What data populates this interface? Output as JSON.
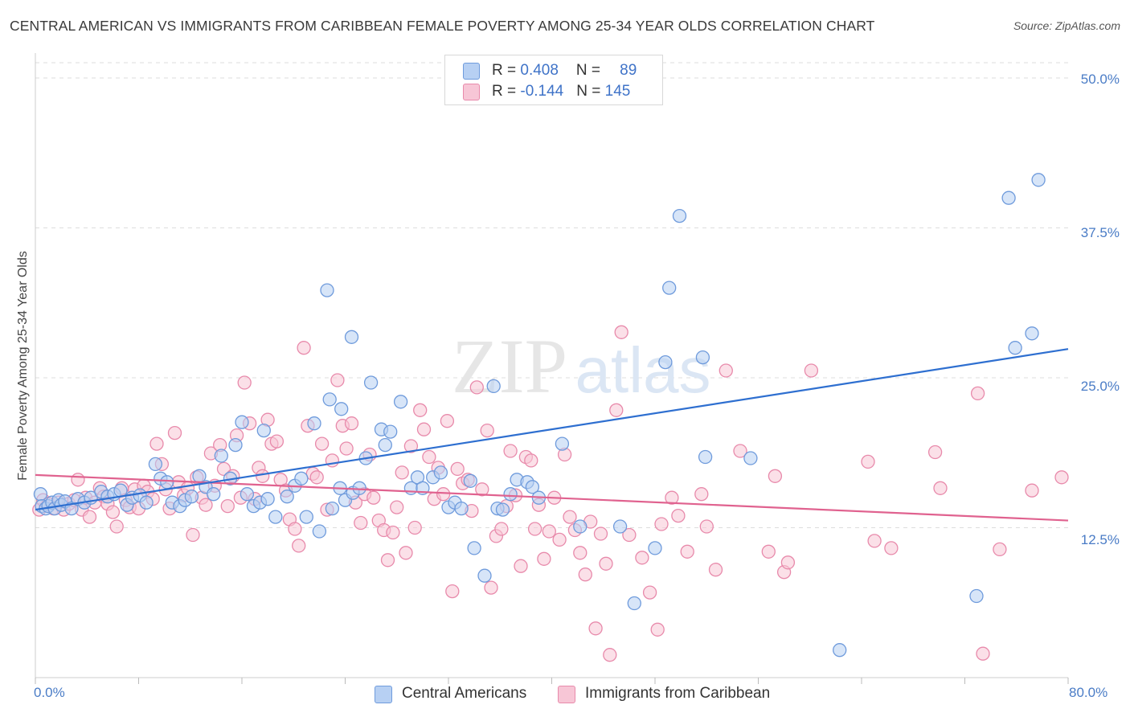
{
  "header": {
    "title": "CENTRAL AMERICAN VS IMMIGRANTS FROM CARIBBEAN FEMALE POVERTY AMONG 25-34 YEAR OLDS CORRELATION CHART",
    "source": "Source: ZipAtlas.com"
  },
  "watermark": {
    "part1": "ZIP",
    "part2": "atlas"
  },
  "legend": {
    "blue": {
      "r_label": "R = ",
      "r_value": "0.408",
      "n_label": "N = ",
      "n_value": "89"
    },
    "pink": {
      "r_label": "R = ",
      "r_value": "-0.144",
      "n_label": "N = ",
      "n_value": "145"
    }
  },
  "colors": {
    "blue_fill": "#b7d0f3",
    "blue_stroke": "#6f9bdc",
    "blue_line": "#2e6fd0",
    "pink_fill": "#f7c6d6",
    "pink_stroke": "#e88aab",
    "pink_line": "#e0628f",
    "tick_text": "#4a7cc6",
    "grid": "#dddddd"
  },
  "chart_data": {
    "type": "scatter",
    "title": "CENTRAL AMERICAN VS IMMIGRANTS FROM CARIBBEAN FEMALE POVERTY AMONG 25-34 YEAR OLDS CORRELATION CHART",
    "xlabel": "",
    "ylabel": "Female Poverty Among 25-34 Year Olds",
    "xlim": [
      0,
      80
    ],
    "ylim": [
      0,
      50
    ],
    "x_tick_labels": [
      "0.0%",
      "80.0%"
    ],
    "y_ticks": [
      12.5,
      25.0,
      37.5,
      50.0
    ],
    "y_tick_labels": [
      "12.5%",
      "25.0%",
      "37.5%",
      "50.0%"
    ],
    "grid": true,
    "legend_position": "bottom",
    "series": [
      {
        "name": "Central Americans",
        "r": 0.408,
        "n": 89,
        "trend": {
          "x": [
            0,
            80
          ],
          "y": [
            14.0,
            27.4
          ]
        },
        "points": [
          [
            0.4,
            15.3
          ],
          [
            0.5,
            14.3
          ],
          [
            0.8,
            14.1
          ],
          [
            1.0,
            14.3
          ],
          [
            1.3,
            14.6
          ],
          [
            1.5,
            14.1
          ],
          [
            1.8,
            14.8
          ],
          [
            2.0,
            14.4
          ],
          [
            2.3,
            14.7
          ],
          [
            2.8,
            14.1
          ],
          [
            3.3,
            14.9
          ],
          [
            3.8,
            14.6
          ],
          [
            4.3,
            15.0
          ],
          [
            5.1,
            15.5
          ],
          [
            5.6,
            15.1
          ],
          [
            6.1,
            15.3
          ],
          [
            6.6,
            15.6
          ],
          [
            7.1,
            14.4
          ],
          [
            7.5,
            15.0
          ],
          [
            8.1,
            15.2
          ],
          [
            8.6,
            14.6
          ],
          [
            9.3,
            17.8
          ],
          [
            9.7,
            16.6
          ],
          [
            10.2,
            16.3
          ],
          [
            10.6,
            14.6
          ],
          [
            11.2,
            14.3
          ],
          [
            11.6,
            14.8
          ],
          [
            12.1,
            15.1
          ],
          [
            12.7,
            16.8
          ],
          [
            13.2,
            15.9
          ],
          [
            13.8,
            15.3
          ],
          [
            14.4,
            18.5
          ],
          [
            15.1,
            16.6
          ],
          [
            15.5,
            19.4
          ],
          [
            16.0,
            21.3
          ],
          [
            16.4,
            15.3
          ],
          [
            16.9,
            14.3
          ],
          [
            17.4,
            14.6
          ],
          [
            18.0,
            14.9
          ],
          [
            17.7,
            20.6
          ],
          [
            18.6,
            13.4
          ],
          [
            19.5,
            15.1
          ],
          [
            20.1,
            16.0
          ],
          [
            20.6,
            16.6
          ],
          [
            21.0,
            13.4
          ],
          [
            21.6,
            21.2
          ],
          [
            22.0,
            12.2
          ],
          [
            23.0,
            14.1
          ],
          [
            23.6,
            15.8
          ],
          [
            24.0,
            14.8
          ],
          [
            24.6,
            15.4
          ],
          [
            22.6,
            32.3
          ],
          [
            22.8,
            23.2
          ],
          [
            23.7,
            22.4
          ],
          [
            24.5,
            28.4
          ],
          [
            25.1,
            15.8
          ],
          [
            25.6,
            18.3
          ],
          [
            26.0,
            24.6
          ],
          [
            26.8,
            20.7
          ],
          [
            27.1,
            19.4
          ],
          [
            27.5,
            20.5
          ],
          [
            28.3,
            23.0
          ],
          [
            29.1,
            15.8
          ],
          [
            29.6,
            16.7
          ],
          [
            30.0,
            15.8
          ],
          [
            30.8,
            16.7
          ],
          [
            31.4,
            17.1
          ],
          [
            32.0,
            14.2
          ],
          [
            32.5,
            14.6
          ],
          [
            33.0,
            14.1
          ],
          [
            33.7,
            16.4
          ],
          [
            34.0,
            10.8
          ],
          [
            34.8,
            8.5
          ],
          [
            35.5,
            24.3
          ],
          [
            35.8,
            14.1
          ],
          [
            36.2,
            14.0
          ],
          [
            36.8,
            15.3
          ],
          [
            37.3,
            16.5
          ],
          [
            38.1,
            16.3
          ],
          [
            38.5,
            15.9
          ],
          [
            39.0,
            15.0
          ],
          [
            40.8,
            19.5
          ],
          [
            42.2,
            12.6
          ],
          [
            45.3,
            12.6
          ],
          [
            46.4,
            6.2
          ],
          [
            48.0,
            10.8
          ],
          [
            49.1,
            32.5
          ],
          [
            49.9,
            38.5
          ],
          [
            48.8,
            26.3
          ],
          [
            51.7,
            26.7
          ],
          [
            51.9,
            18.4
          ],
          [
            55.4,
            18.3
          ],
          [
            62.3,
            2.3
          ],
          [
            72.9,
            6.8
          ],
          [
            75.4,
            40.0
          ],
          [
            75.9,
            27.5
          ],
          [
            77.2,
            28.7
          ],
          [
            77.7,
            41.5
          ]
        ]
      },
      {
        "name": "Immigrants from Caribbean",
        "r": -0.144,
        "n": 145,
        "trend": {
          "x": [
            0,
            80
          ],
          "y": [
            16.9,
            13.1
          ]
        },
        "points": [
          [
            0.3,
            14.0
          ],
          [
            0.6,
            14.8
          ],
          [
            1.0,
            14.5
          ],
          [
            1.4,
            14.1
          ],
          [
            1.8,
            14.6
          ],
          [
            2.2,
            14.0
          ],
          [
            2.6,
            14.5
          ],
          [
            3.0,
            14.8
          ],
          [
            3.3,
            16.5
          ],
          [
            3.6,
            14.0
          ],
          [
            3.9,
            15.0
          ],
          [
            4.2,
            13.4
          ],
          [
            4.6,
            14.6
          ],
          [
            5.0,
            15.8
          ],
          [
            5.3,
            15.1
          ],
          [
            5.6,
            14.5
          ],
          [
            6.0,
            13.8
          ],
          [
            6.3,
            12.6
          ],
          [
            6.7,
            15.8
          ],
          [
            7.0,
            14.8
          ],
          [
            7.3,
            14.2
          ],
          [
            7.7,
            15.7
          ],
          [
            8.0,
            14.1
          ],
          [
            8.4,
            16.0
          ],
          [
            8.7,
            15.5
          ],
          [
            9.1,
            14.9
          ],
          [
            9.4,
            19.5
          ],
          [
            9.8,
            17.8
          ],
          [
            10.1,
            15.7
          ],
          [
            10.4,
            14.1
          ],
          [
            10.8,
            20.4
          ],
          [
            11.1,
            16.3
          ],
          [
            11.5,
            15.2
          ],
          [
            11.8,
            15.8
          ],
          [
            12.2,
            11.9
          ],
          [
            12.5,
            16.7
          ],
          [
            12.9,
            15.0
          ],
          [
            13.2,
            14.4
          ],
          [
            13.6,
            18.7
          ],
          [
            13.9,
            16.0
          ],
          [
            14.3,
            19.4
          ],
          [
            14.6,
            17.4
          ],
          [
            14.9,
            14.3
          ],
          [
            15.3,
            16.8
          ],
          [
            15.6,
            20.2
          ],
          [
            15.9,
            15.0
          ],
          [
            16.2,
            24.6
          ],
          [
            16.6,
            21.2
          ],
          [
            17.0,
            14.9
          ],
          [
            17.3,
            17.5
          ],
          [
            17.6,
            16.8
          ],
          [
            18.0,
            21.5
          ],
          [
            18.3,
            19.5
          ],
          [
            18.7,
            19.7
          ],
          [
            19.0,
            16.5
          ],
          [
            19.4,
            15.6
          ],
          [
            19.7,
            13.2
          ],
          [
            20.1,
            12.4
          ],
          [
            20.4,
            11.0
          ],
          [
            20.8,
            27.5
          ],
          [
            21.1,
            21.0
          ],
          [
            21.5,
            17.0
          ],
          [
            21.8,
            16.7
          ],
          [
            22.2,
            19.5
          ],
          [
            22.6,
            14.0
          ],
          [
            23.0,
            18.1
          ],
          [
            23.4,
            24.8
          ],
          [
            23.8,
            21.0
          ],
          [
            24.1,
            19.1
          ],
          [
            24.5,
            21.2
          ],
          [
            24.8,
            14.6
          ],
          [
            25.2,
            12.9
          ],
          [
            25.5,
            15.3
          ],
          [
            25.9,
            18.6
          ],
          [
            26.2,
            15.0
          ],
          [
            26.6,
            13.1
          ],
          [
            27.0,
            12.3
          ],
          [
            27.3,
            9.8
          ],
          [
            27.7,
            12.1
          ],
          [
            28.0,
            14.2
          ],
          [
            28.4,
            17.1
          ],
          [
            28.7,
            10.4
          ],
          [
            29.1,
            19.3
          ],
          [
            29.4,
            12.5
          ],
          [
            29.8,
            22.3
          ],
          [
            30.1,
            20.7
          ],
          [
            30.5,
            18.4
          ],
          [
            30.9,
            14.9
          ],
          [
            31.2,
            17.5
          ],
          [
            31.6,
            15.3
          ],
          [
            31.9,
            21.4
          ],
          [
            32.3,
            7.2
          ],
          [
            32.7,
            17.4
          ],
          [
            33.1,
            16.2
          ],
          [
            33.5,
            16.5
          ],
          [
            33.8,
            13.9
          ],
          [
            34.2,
            24.2
          ],
          [
            34.6,
            15.7
          ],
          [
            35.0,
            20.6
          ],
          [
            35.3,
            7.5
          ],
          [
            35.7,
            11.8
          ],
          [
            36.1,
            12.4
          ],
          [
            36.5,
            14.3
          ],
          [
            36.8,
            18.9
          ],
          [
            37.2,
            15.2
          ],
          [
            37.6,
            9.3
          ],
          [
            38.0,
            18.4
          ],
          [
            38.4,
            18.1
          ],
          [
            38.7,
            12.4
          ],
          [
            39.0,
            14.4
          ],
          [
            39.4,
            9.9
          ],
          [
            39.8,
            12.2
          ],
          [
            40.2,
            15.0
          ],
          [
            40.6,
            11.5
          ],
          [
            41.0,
            18.6
          ],
          [
            41.4,
            13.4
          ],
          [
            41.8,
            12.3
          ],
          [
            42.2,
            10.4
          ],
          [
            42.6,
            8.6
          ],
          [
            43.0,
            13.0
          ],
          [
            43.4,
            4.1
          ],
          [
            43.8,
            12.0
          ],
          [
            44.2,
            9.5
          ],
          [
            44.5,
            1.9
          ],
          [
            45.0,
            22.3
          ],
          [
            45.4,
            28.8
          ],
          [
            46.0,
            11.9
          ],
          [
            47.0,
            10.0
          ],
          [
            47.6,
            7.1
          ],
          [
            48.2,
            4.0
          ],
          [
            48.5,
            12.8
          ],
          [
            49.3,
            15.0
          ],
          [
            49.8,
            13.5
          ],
          [
            50.5,
            10.5
          ],
          [
            51.6,
            15.3
          ],
          [
            52.0,
            12.6
          ],
          [
            52.7,
            9.0
          ],
          [
            53.5,
            25.6
          ],
          [
            54.6,
            18.9
          ],
          [
            56.8,
            10.5
          ],
          [
            57.3,
            16.8
          ],
          [
            58.0,
            8.8
          ],
          [
            58.3,
            9.6
          ],
          [
            60.1,
            25.6
          ],
          [
            64.5,
            18.0
          ],
          [
            65.0,
            11.4
          ],
          [
            66.3,
            10.8
          ],
          [
            69.7,
            18.8
          ],
          [
            70.1,
            15.8
          ],
          [
            73.0,
            23.7
          ],
          [
            73.4,
            2.0
          ],
          [
            74.7,
            10.7
          ],
          [
            77.2,
            15.6
          ],
          [
            79.5,
            16.7
          ]
        ]
      }
    ]
  },
  "bottom_legend": {
    "blue_label": "Central Americans",
    "pink_label": "Immigrants from Caribbean"
  },
  "axis_text": {
    "x_min": "0.0%",
    "x_max": "80.0%",
    "y_125": "12.5%",
    "y_250": "25.0%",
    "y_375": "37.5%",
    "y_500": "50.0%"
  }
}
